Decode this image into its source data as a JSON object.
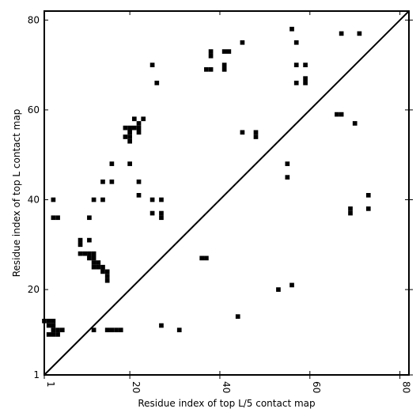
{
  "chart_data": {
    "type": "heatmap",
    "title": "",
    "xlabel": "Residue index of top L/5 contact map",
    "ylabel": "Residue index of top L contact map",
    "xlim": [
      1,
      82
    ],
    "ylim": [
      1,
      82
    ],
    "xticks": [
      1,
      20,
      40,
      60,
      80
    ],
    "yticks": [
      1,
      20,
      40,
      60,
      80
    ],
    "grid": false,
    "diagonal_line": true,
    "mark_color": "#000000",
    "cells": [
      [
        1,
        13
      ],
      [
        2,
        13
      ],
      [
        3,
        13
      ],
      [
        2,
        12
      ],
      [
        3,
        12
      ],
      [
        2,
        10
      ],
      [
        3,
        10
      ],
      [
        4,
        10
      ],
      [
        3,
        11
      ],
      [
        4,
        11
      ],
      [
        5,
        11
      ],
      [
        12,
        11
      ],
      [
        15,
        11
      ],
      [
        16,
        11
      ],
      [
        17,
        11
      ],
      [
        18,
        11
      ],
      [
        27,
        12
      ],
      [
        31,
        11
      ],
      [
        44,
        14
      ],
      [
        53,
        20
      ],
      [
        56,
        21
      ],
      [
        9,
        28
      ],
      [
        10,
        28
      ],
      [
        11,
        28
      ],
      [
        12,
        28
      ],
      [
        11,
        27
      ],
      [
        12,
        27
      ],
      [
        12,
        26
      ],
      [
        13,
        26
      ],
      [
        12,
        25
      ],
      [
        13,
        25
      ],
      [
        14,
        25
      ],
      [
        14,
        24
      ],
      [
        15,
        24
      ],
      [
        15,
        23
      ],
      [
        15,
        22
      ],
      [
        9,
        30
      ],
      [
        9,
        31
      ],
      [
        11,
        31
      ],
      [
        3,
        36
      ],
      [
        4,
        36
      ],
      [
        11,
        36
      ],
      [
        3,
        40
      ],
      [
        12,
        40
      ],
      [
        14,
        40
      ],
      [
        14,
        44
      ],
      [
        16,
        44
      ],
      [
        22,
        44
      ],
      [
        22,
        41
      ],
      [
        25,
        40
      ],
      [
        27,
        40
      ],
      [
        25,
        37
      ],
      [
        27,
        37
      ],
      [
        27,
        36
      ],
      [
        36,
        27
      ],
      [
        37,
        27
      ],
      [
        16,
        48
      ],
      [
        20,
        48
      ],
      [
        19,
        54
      ],
      [
        20,
        54
      ],
      [
        20,
        53
      ],
      [
        19,
        56
      ],
      [
        20,
        56
      ],
      [
        21,
        56
      ],
      [
        20,
        55
      ],
      [
        22,
        56
      ],
      [
        22,
        55
      ],
      [
        22,
        57
      ],
      [
        21,
        58
      ],
      [
        23,
        58
      ],
      [
        25,
        70
      ],
      [
        26,
        66
      ],
      [
        37,
        69
      ],
      [
        38,
        69
      ],
      [
        38,
        72
      ],
      [
        38,
        73
      ],
      [
        41,
        69
      ],
      [
        41,
        70
      ],
      [
        41,
        73
      ],
      [
        42,
        73
      ],
      [
        45,
        75
      ],
      [
        45,
        55
      ],
      [
        48,
        55
      ],
      [
        48,
        54
      ],
      [
        55,
        48
      ],
      [
        55,
        45
      ],
      [
        56,
        78
      ],
      [
        57,
        75
      ],
      [
        57,
        70
      ],
      [
        57,
        66
      ],
      [
        59,
        70
      ],
      [
        59,
        67
      ],
      [
        59,
        66
      ],
      [
        67,
        77
      ],
      [
        71,
        77
      ],
      [
        66,
        59
      ],
      [
        67,
        59
      ],
      [
        70,
        57
      ],
      [
        69,
        38
      ],
      [
        69,
        37
      ],
      [
        73,
        41
      ],
      [
        73,
        38
      ]
    ]
  }
}
